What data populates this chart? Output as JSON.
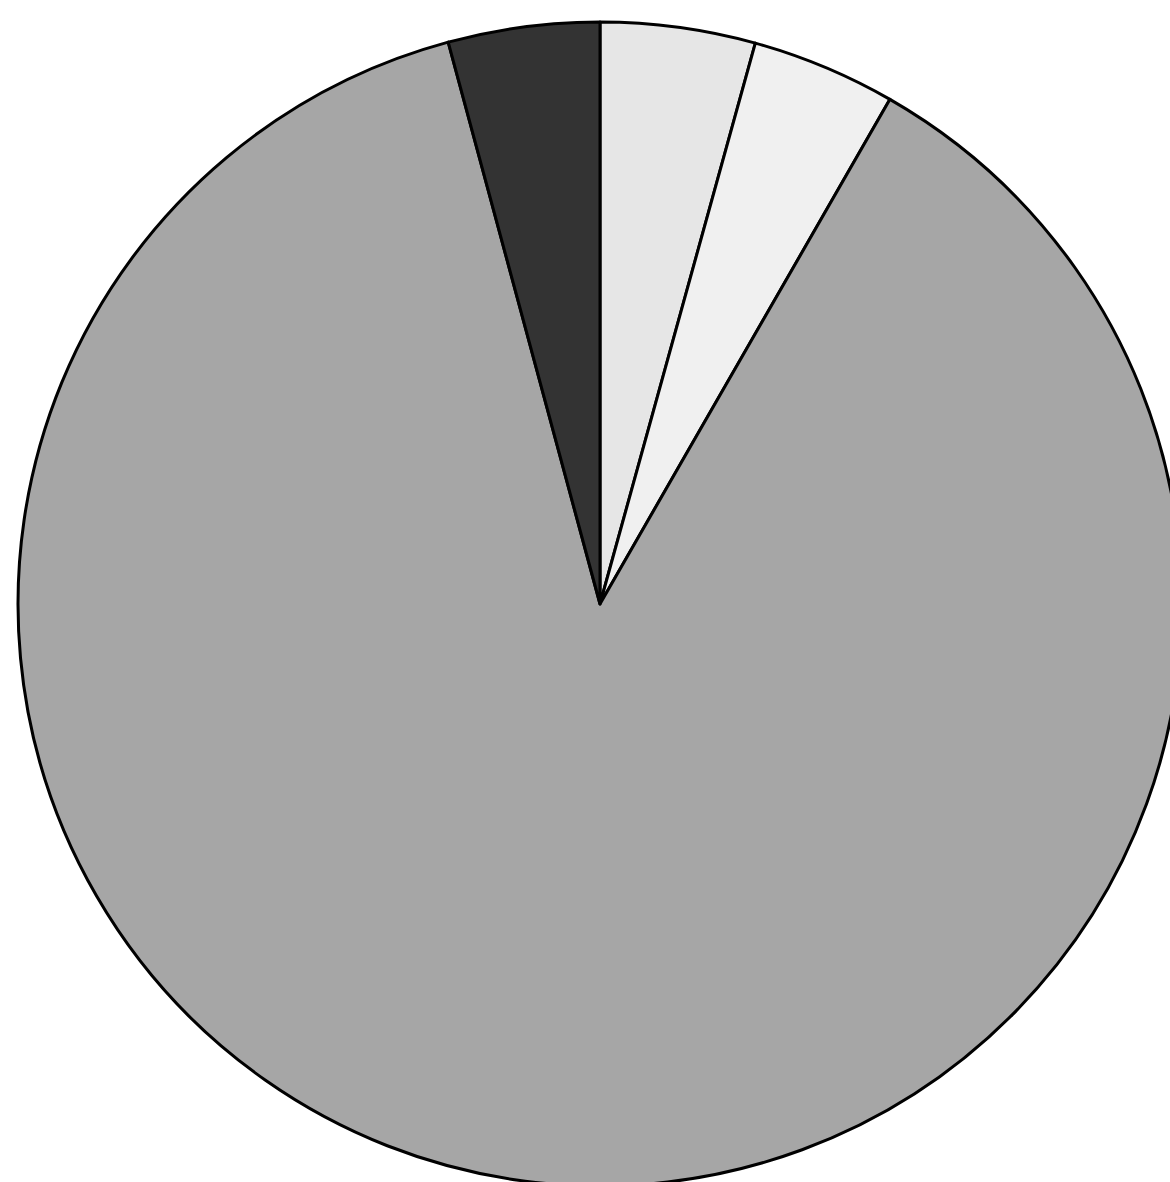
{
  "chart_data": {
    "type": "pie",
    "categories": [
      null,
      null,
      null,
      null
    ],
    "values": [
      4.3,
      4.0,
      87.5,
      4.2
    ],
    "colors": [
      "#e6e6e6",
      "#f0f0f0",
      "#a6a6a6",
      "#333333"
    ]
  }
}
